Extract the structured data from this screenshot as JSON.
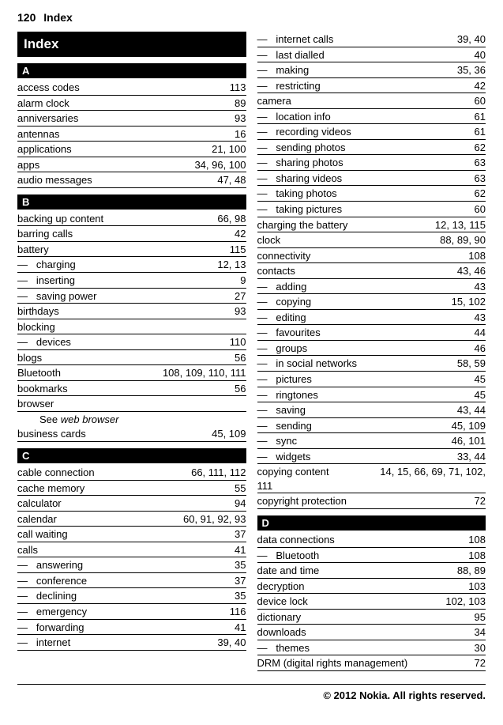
{
  "header": {
    "page_number": "120",
    "section": "Index"
  },
  "title": "Index",
  "footer": "© 2012 Nokia. All rights reserved.",
  "left": [
    {
      "type": "letter",
      "label": "A"
    },
    {
      "term": "access codes",
      "pages": "113"
    },
    {
      "term": "alarm clock",
      "pages": "89"
    },
    {
      "term": "anniversaries",
      "pages": "93"
    },
    {
      "term": "antennas",
      "pages": "16"
    },
    {
      "term": "applications",
      "pages": "21, 100"
    },
    {
      "term": "apps",
      "pages": "34, 96, 100"
    },
    {
      "term": "audio messages",
      "pages": "47, 48"
    },
    {
      "type": "letter",
      "label": "B"
    },
    {
      "term": "backing up content",
      "pages": "66, 98"
    },
    {
      "term": "barring calls",
      "pages": "42"
    },
    {
      "term": "battery",
      "pages": "115"
    },
    {
      "term": "charging",
      "pages": "12, 13",
      "dash": true
    },
    {
      "term": "inserting",
      "pages": "9",
      "dash": true
    },
    {
      "term": "saving power",
      "pages": "27",
      "dash": true
    },
    {
      "term": "birthdays",
      "pages": "93"
    },
    {
      "term": "blocking",
      "pages": ""
    },
    {
      "term": "devices",
      "pages": "110",
      "dash": true
    },
    {
      "term": "blogs",
      "pages": "56"
    },
    {
      "term": "Bluetooth",
      "pages": "108, 109, 110, 111"
    },
    {
      "term": "bookmarks",
      "pages": "56"
    },
    {
      "term": "browser",
      "pages": ""
    },
    {
      "type": "see",
      "see": "See ",
      "target": "web browser"
    },
    {
      "term": "business cards",
      "pages": "45, 109"
    },
    {
      "type": "letter",
      "label": "C"
    },
    {
      "term": "cable connection",
      "pages": "66, 111, 112"
    },
    {
      "term": "cache memory",
      "pages": "55"
    },
    {
      "term": "calculator",
      "pages": "94"
    },
    {
      "term": "calendar",
      "pages": "60, 91, 92, 93"
    },
    {
      "term": "call waiting",
      "pages": "37"
    },
    {
      "term": "calls",
      "pages": "41"
    },
    {
      "term": "answering",
      "pages": "35",
      "dash": true
    },
    {
      "term": "conference",
      "pages": "37",
      "dash": true
    },
    {
      "term": "declining",
      "pages": "35",
      "dash": true
    },
    {
      "term": "emergency",
      "pages": "116",
      "dash": true
    },
    {
      "term": "forwarding",
      "pages": "41",
      "dash": true
    },
    {
      "term": "internet",
      "pages": "39, 40",
      "dash": true
    }
  ],
  "right": [
    {
      "term": "internet calls",
      "pages": "39, 40",
      "dash": true
    },
    {
      "term": "last dialled",
      "pages": "40",
      "dash": true
    },
    {
      "term": "making",
      "pages": "35, 36",
      "dash": true
    },
    {
      "term": "restricting",
      "pages": "42",
      "dash": true
    },
    {
      "term": "camera",
      "pages": "60"
    },
    {
      "term": "location info",
      "pages": "61",
      "dash": true
    },
    {
      "term": "recording videos",
      "pages": "61",
      "dash": true
    },
    {
      "term": "sending photos",
      "pages": "62",
      "dash": true
    },
    {
      "term": "sharing photos",
      "pages": "63",
      "dash": true
    },
    {
      "term": "sharing videos",
      "pages": "63",
      "dash": true
    },
    {
      "term": "taking photos",
      "pages": "62",
      "dash": true
    },
    {
      "term": "taking pictures",
      "pages": "60",
      "dash": true
    },
    {
      "term": "charging the battery",
      "pages": "12, 13, 115"
    },
    {
      "term": "clock",
      "pages": "88, 89, 90"
    },
    {
      "term": "connectivity",
      "pages": "108"
    },
    {
      "term": "contacts",
      "pages": "43, 46"
    },
    {
      "term": "adding",
      "pages": "43",
      "dash": true
    },
    {
      "term": "copying",
      "pages": "15, 102",
      "dash": true
    },
    {
      "term": "editing",
      "pages": "43",
      "dash": true
    },
    {
      "term": "favourites",
      "pages": "44",
      "dash": true
    },
    {
      "term": "groups",
      "pages": "46",
      "dash": true
    },
    {
      "term": "in social networks",
      "pages": "58, 59",
      "dash": true
    },
    {
      "term": "pictures",
      "pages": "45",
      "dash": true
    },
    {
      "term": "ringtones",
      "pages": "45",
      "dash": true
    },
    {
      "term": "saving",
      "pages": "43, 44",
      "dash": true
    },
    {
      "term": "sending",
      "pages": "45, 109",
      "dash": true
    },
    {
      "term": "sync",
      "pages": "46, 101",
      "dash": true
    },
    {
      "term": "widgets",
      "pages": "33, 44",
      "dash": true
    },
    {
      "type": "wrap",
      "term": "copying content",
      "pages_inline": "14, 15, 66, 69, 71, 102,",
      "pages_below": "111"
    },
    {
      "term": "copyright protection",
      "pages": "72"
    },
    {
      "type": "letter",
      "label": "D"
    },
    {
      "term": "data connections",
      "pages": "108"
    },
    {
      "term": "Bluetooth",
      "pages": "108",
      "dash": true
    },
    {
      "term": "date and time",
      "pages": "88, 89"
    },
    {
      "term": "decryption",
      "pages": "103"
    },
    {
      "term": "device lock",
      "pages": "102, 103"
    },
    {
      "term": "dictionary",
      "pages": "95"
    },
    {
      "term": "downloads",
      "pages": "34"
    },
    {
      "term": "themes",
      "pages": "30",
      "dash": true
    },
    {
      "term": "DRM (digital rights management)",
      "pages": "72"
    }
  ]
}
